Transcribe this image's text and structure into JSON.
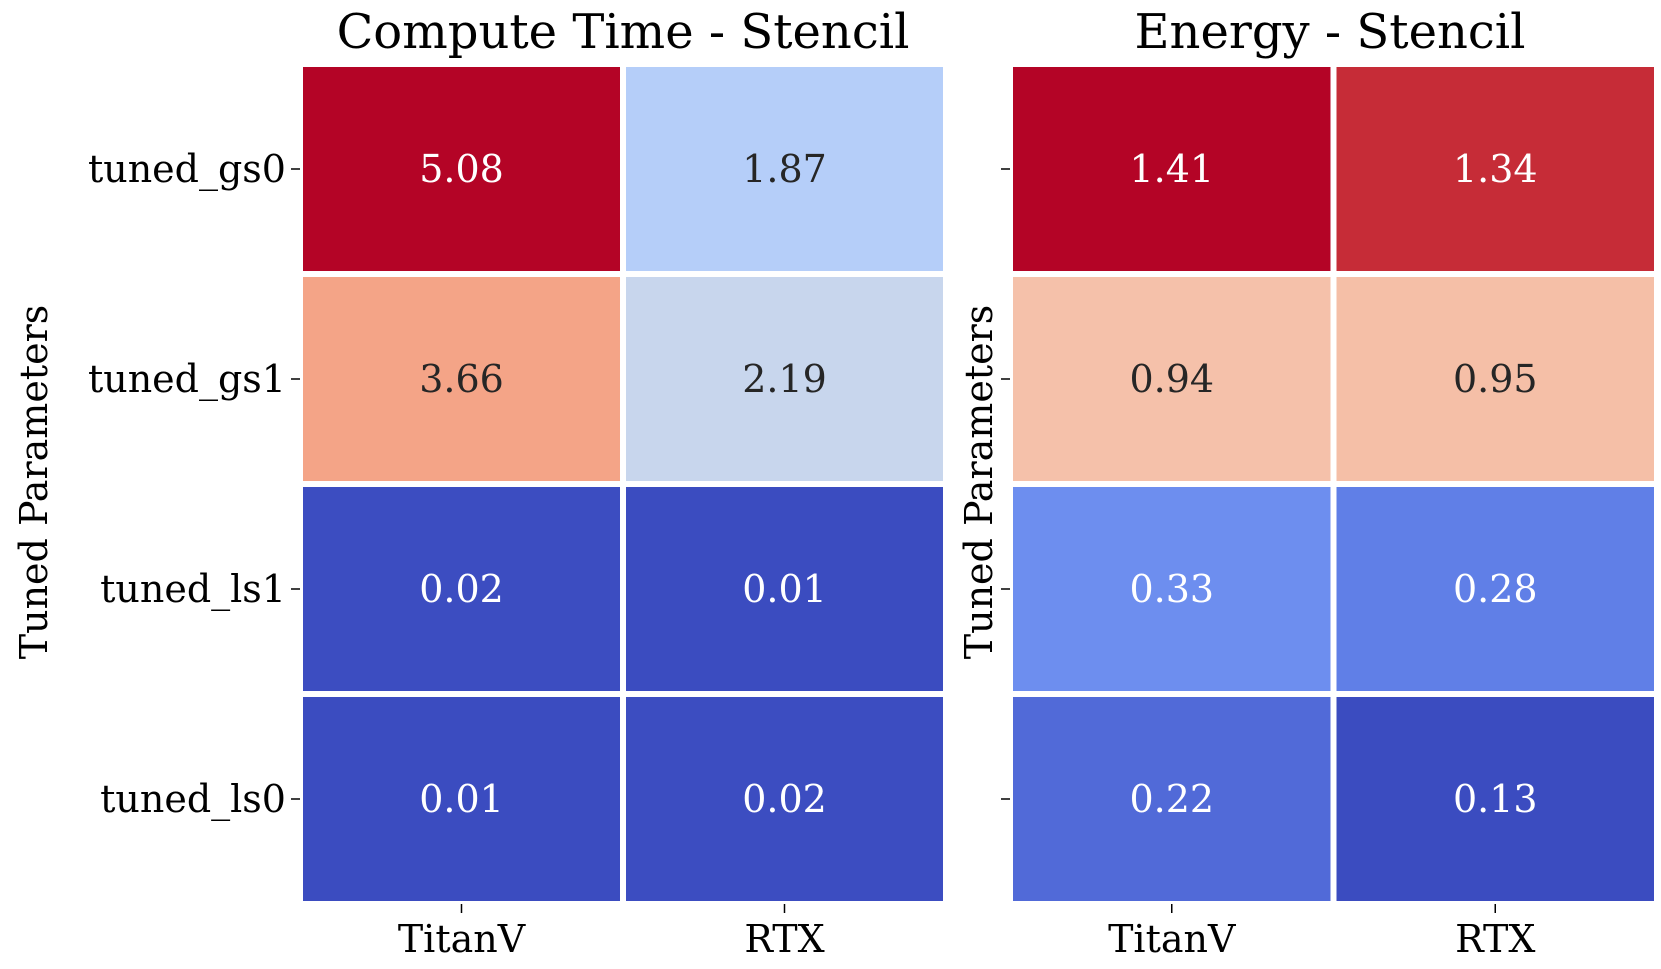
{
  "chart_data": [
    {
      "type": "heatmap",
      "title": "Compute Time - Stencil",
      "xlabel": "",
      "ylabel": "Tuned Parameters",
      "columns": [
        "TitanV",
        "RTX"
      ],
      "rows": [
        "tuned_gs0",
        "tuned_gs1",
        "tuned_ls1",
        "tuned_ls0"
      ],
      "values": [
        [
          5.08,
          1.87
        ],
        [
          3.66,
          2.19
        ],
        [
          0.02,
          0.01
        ],
        [
          0.01,
          0.02
        ]
      ],
      "labels": [
        [
          "5.08",
          "1.87"
        ],
        [
          "3.66",
          "2.19"
        ],
        [
          "0.02",
          "0.01"
        ],
        [
          "0.01",
          "0.02"
        ]
      ],
      "vlim": [
        0.01,
        5.08
      ],
      "colormap": "coolwarm",
      "colorbar": false
    },
    {
      "type": "heatmap",
      "title": "Energy - Stencil",
      "xlabel": "",
      "ylabel": "Tuned Parameters",
      "columns": [
        "TitanV",
        "RTX"
      ],
      "rows": [
        "tuned_gs0",
        "tuned_gs1",
        "tuned_ls1",
        "tuned_ls0"
      ],
      "values": [
        [
          1.41,
          1.34
        ],
        [
          0.94,
          0.95
        ],
        [
          0.33,
          0.28
        ],
        [
          0.22,
          0.13
        ]
      ],
      "labels": [
        [
          "1.41",
          "1.34"
        ],
        [
          "0.94",
          "0.95"
        ],
        [
          "0.33",
          "0.28"
        ],
        [
          "0.22",
          "0.13"
        ]
      ],
      "vlim": [
        0.13,
        1.41
      ],
      "colormap": "coolwarm",
      "colorbar": false
    }
  ]
}
